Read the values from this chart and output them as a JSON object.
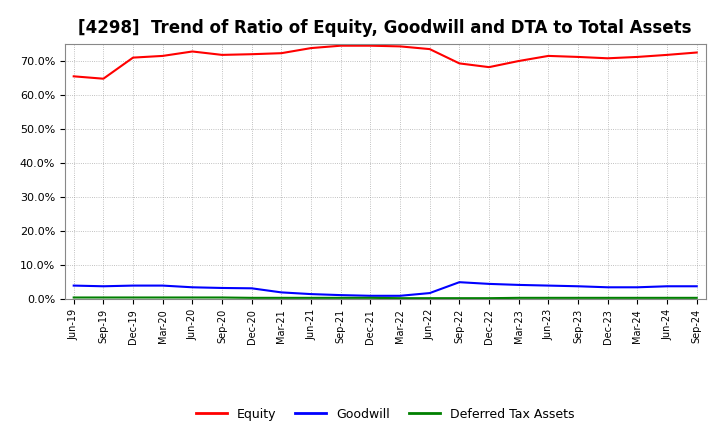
{
  "title": "[4298]  Trend of Ratio of Equity, Goodwill and DTA to Total Assets",
  "x_labels": [
    "Jun-19",
    "Sep-19",
    "Dec-19",
    "Mar-20",
    "Jun-20",
    "Sep-20",
    "Dec-20",
    "Mar-21",
    "Jun-21",
    "Sep-21",
    "Dec-21",
    "Mar-22",
    "Jun-22",
    "Sep-22",
    "Dec-22",
    "Mar-23",
    "Jun-23",
    "Sep-23",
    "Dec-23",
    "Mar-24",
    "Jun-24",
    "Sep-24"
  ],
  "equity": [
    65.5,
    64.8,
    71.0,
    71.5,
    72.8,
    71.8,
    72.0,
    72.3,
    73.8,
    74.5,
    74.5,
    74.3,
    73.5,
    69.3,
    68.2,
    70.0,
    71.5,
    71.2,
    70.8,
    71.2,
    71.8,
    72.5
  ],
  "goodwill": [
    4.0,
    3.8,
    4.0,
    4.0,
    3.5,
    3.3,
    3.2,
    2.0,
    1.5,
    1.2,
    1.0,
    1.0,
    1.8,
    5.0,
    4.5,
    4.2,
    4.0,
    3.8,
    3.5,
    3.5,
    3.8,
    3.8
  ],
  "dta": [
    0.5,
    0.5,
    0.5,
    0.5,
    0.5,
    0.5,
    0.4,
    0.4,
    0.4,
    0.4,
    0.4,
    0.3,
    0.3,
    0.3,
    0.3,
    0.4,
    0.4,
    0.4,
    0.4,
    0.4,
    0.4,
    0.4
  ],
  "equity_color": "#FF0000",
  "goodwill_color": "#0000FF",
  "dta_color": "#008000",
  "ylim": [
    0,
    75
  ],
  "yticks": [
    0,
    10,
    20,
    30,
    40,
    50,
    60,
    70
  ],
  "ytick_labels": [
    "0.0%",
    "10.0%",
    "20.0%",
    "30.0%",
    "40.0%",
    "50.0%",
    "60.0%",
    "70.0%"
  ],
  "background_color": "#FFFFFF",
  "grid_color": "#999999",
  "title_fontsize": 12,
  "legend_labels": [
    "Equity",
    "Goodwill",
    "Deferred Tax Assets"
  ]
}
